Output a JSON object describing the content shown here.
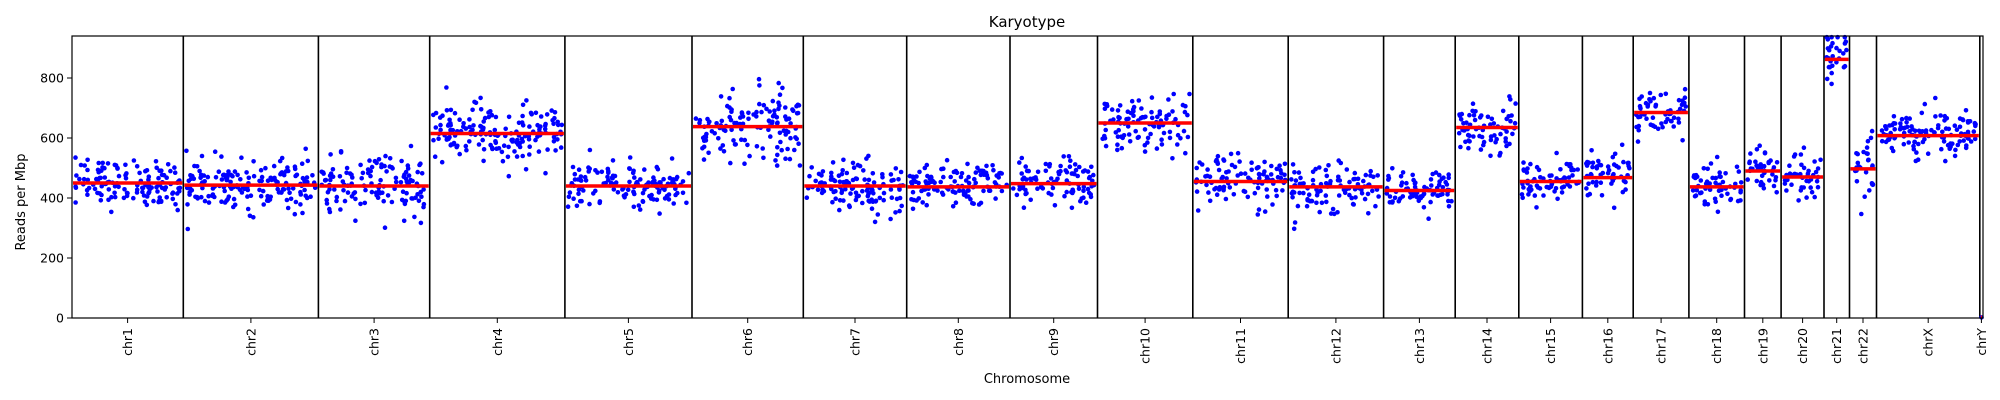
{
  "chart_data": {
    "type": "scatter",
    "title": "Karyotype",
    "xlabel": "Chromosome",
    "ylabel": "Reads per Mbp",
    "ylim": [
      0,
      940
    ],
    "yticks": [
      0,
      200,
      400,
      600,
      800
    ],
    "grid": false,
    "colors": {
      "points": "#0000ff",
      "median": "#ff0000",
      "divider": "#000000"
    },
    "chromosomes": [
      {
        "name": "chr1",
        "points": 130,
        "median": 450,
        "spread": 40,
        "span_units": 70
      },
      {
        "name": "chr2",
        "points": 165,
        "median": 443,
        "spread": 42,
        "span_units": 85
      },
      {
        "name": "chr3",
        "points": 130,
        "median": 440,
        "spread": 48,
        "span_units": 70
      },
      {
        "name": "chr4",
        "points": 170,
        "median": 615,
        "spread": 50,
        "span_units": 85
      },
      {
        "name": "chr5",
        "points": 140,
        "median": 440,
        "spread": 38,
        "span_units": 80
      },
      {
        "name": "chr6",
        "points": 130,
        "median": 638,
        "spread": 62,
        "span_units": 70
      },
      {
        "name": "chr7",
        "points": 120,
        "median": 440,
        "spread": 42,
        "span_units": 65
      },
      {
        "name": "chr8",
        "points": 115,
        "median": 437,
        "spread": 40,
        "span_units": 65
      },
      {
        "name": "chr9",
        "points": 95,
        "median": 448,
        "spread": 40,
        "span_units": 55
      },
      {
        "name": "chr10",
        "points": 100,
        "median": 650,
        "spread": 45,
        "span_units": 60
      },
      {
        "name": "chr11",
        "points": 100,
        "median": 455,
        "spread": 42,
        "span_units": 60
      },
      {
        "name": "chr12",
        "points": 100,
        "median": 437,
        "spread": 42,
        "span_units": 60
      },
      {
        "name": "chr13",
        "points": 80,
        "median": 425,
        "spread": 32,
        "span_units": 45
      },
      {
        "name": "chr14",
        "points": 70,
        "median": 635,
        "spread": 40,
        "span_units": 40
      },
      {
        "name": "chr15",
        "points": 70,
        "median": 455,
        "spread": 35,
        "span_units": 40
      },
      {
        "name": "chr16",
        "points": 55,
        "median": 468,
        "spread": 50,
        "span_units": 32
      },
      {
        "name": "chr17",
        "points": 60,
        "median": 685,
        "spread": 40,
        "span_units": 35
      },
      {
        "name": "chr18",
        "points": 60,
        "median": 437,
        "spread": 40,
        "span_units": 35
      },
      {
        "name": "chr19",
        "points": 40,
        "median": 490,
        "spread": 40,
        "span_units": 23
      },
      {
        "name": "chr20",
        "points": 45,
        "median": 470,
        "spread": 45,
        "span_units": 27
      },
      {
        "name": "chr21",
        "points": 30,
        "median": 862,
        "spread": 55,
        "span_units": 16
      },
      {
        "name": "chr22",
        "points": 30,
        "median": 497,
        "spread": 50,
        "span_units": 17
      },
      {
        "name": "chrX",
        "points": 120,
        "median": 608,
        "spread": 40,
        "span_units": 65
      },
      {
        "name": "chrY",
        "points": 1,
        "median": 2,
        "spread": 0,
        "span_units": 2
      }
    ]
  }
}
